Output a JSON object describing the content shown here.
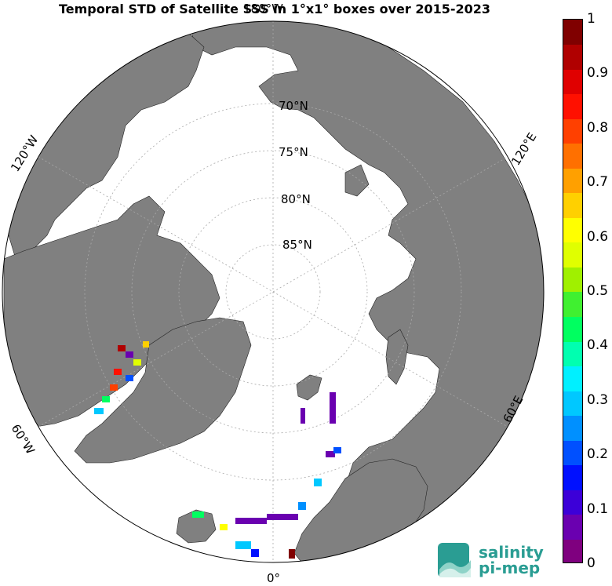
{
  "title": "Temporal STD of Satellite SSS in 1°x1° boxes over 2015-2023",
  "longitude_labels": {
    "top": "180°W",
    "bottom": "0°",
    "left_upper": "120°W",
    "left_lower": "60°W",
    "right_upper": "120°E",
    "right_lower": "60°E"
  },
  "latitude_labels": [
    "70°N",
    "75°N",
    "80°N",
    "85°N"
  ],
  "colorbar": {
    "min": 0,
    "max": 1,
    "ticks": [
      "0",
      "0.1",
      "0.2",
      "0.3",
      "0.4",
      "0.5",
      "0.6",
      "0.7",
      "0.8",
      "0.9",
      "1"
    ],
    "colors": [
      "#7f007f",
      "#6a00b0",
      "#3c00d8",
      "#0010ff",
      "#0050ff",
      "#0090ff",
      "#00c8ff",
      "#00f0ff",
      "#00ffb0",
      "#00ff60",
      "#40f030",
      "#a0f000",
      "#e0ff00",
      "#ffff00",
      "#ffd000",
      "#ffa000",
      "#ff7000",
      "#ff4000",
      "#ff1000",
      "#e00000",
      "#b00000",
      "#800000"
    ]
  },
  "logo": {
    "line1": "salinity",
    "line2": "pi-mep"
  },
  "colors": {
    "land": "#808080",
    "ocean": "#ffffff",
    "ice": "#ffffff"
  }
}
